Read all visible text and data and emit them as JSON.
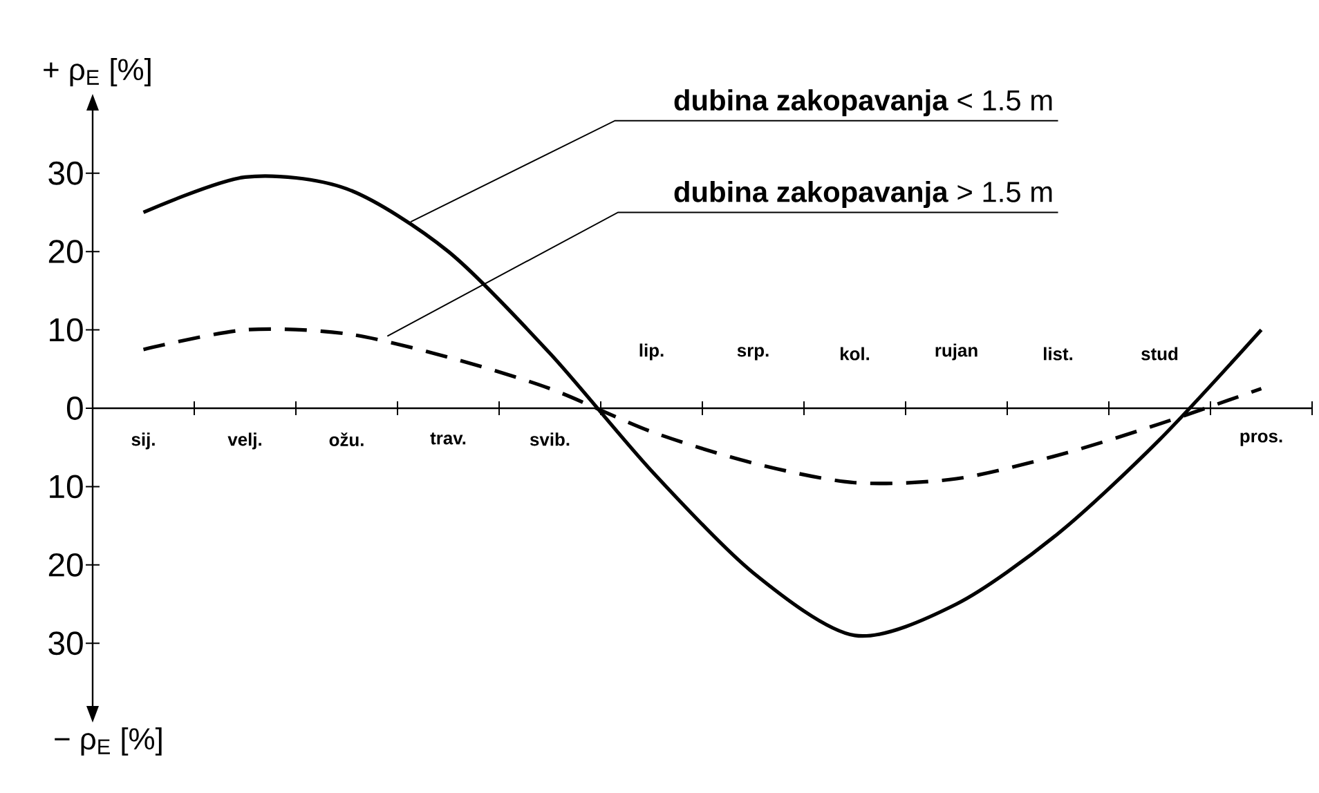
{
  "chart_data": {
    "type": "line",
    "ylabel": "+ ρ$_{E}$ [%]",
    "annotations": [
      "− ρ$_{E}$ [%]"
    ],
    "categories": [
      "sij.",
      "velj.",
      "ožu.",
      "trav.",
      "svib.",
      "lip.",
      "srp.",
      "kol.",
      "rujan",
      "list.",
      "stud",
      "pros."
    ],
    "series": [
      {
        "name": "**dubina zakopavanja** < 1.5 m",
        "color": "#000000",
        "line_style": "solid",
        "values": [
          25,
          29.5,
          28,
          20,
          7,
          -8,
          -21,
          -29,
          -25,
          -16,
          -4,
          10
        ]
      },
      {
        "name": "**dubina zakopavanja** > 1.5 m",
        "color": "#000000",
        "line_style": "dashed",
        "values": [
          7.5,
          10,
          9.5,
          6.5,
          2.5,
          -3,
          -7,
          -9.5,
          -9,
          -6,
          -2,
          2.5
        ]
      }
    ],
    "ylim": [
      -38,
      38
    ],
    "yticks": [
      {
        "value": -30,
        "label": "30"
      },
      {
        "value": -20,
        "label": "20"
      },
      {
        "value": -10,
        "label": "10"
      },
      0,
      10,
      20,
      30
    ],
    "grid": false,
    "legend": false
  }
}
